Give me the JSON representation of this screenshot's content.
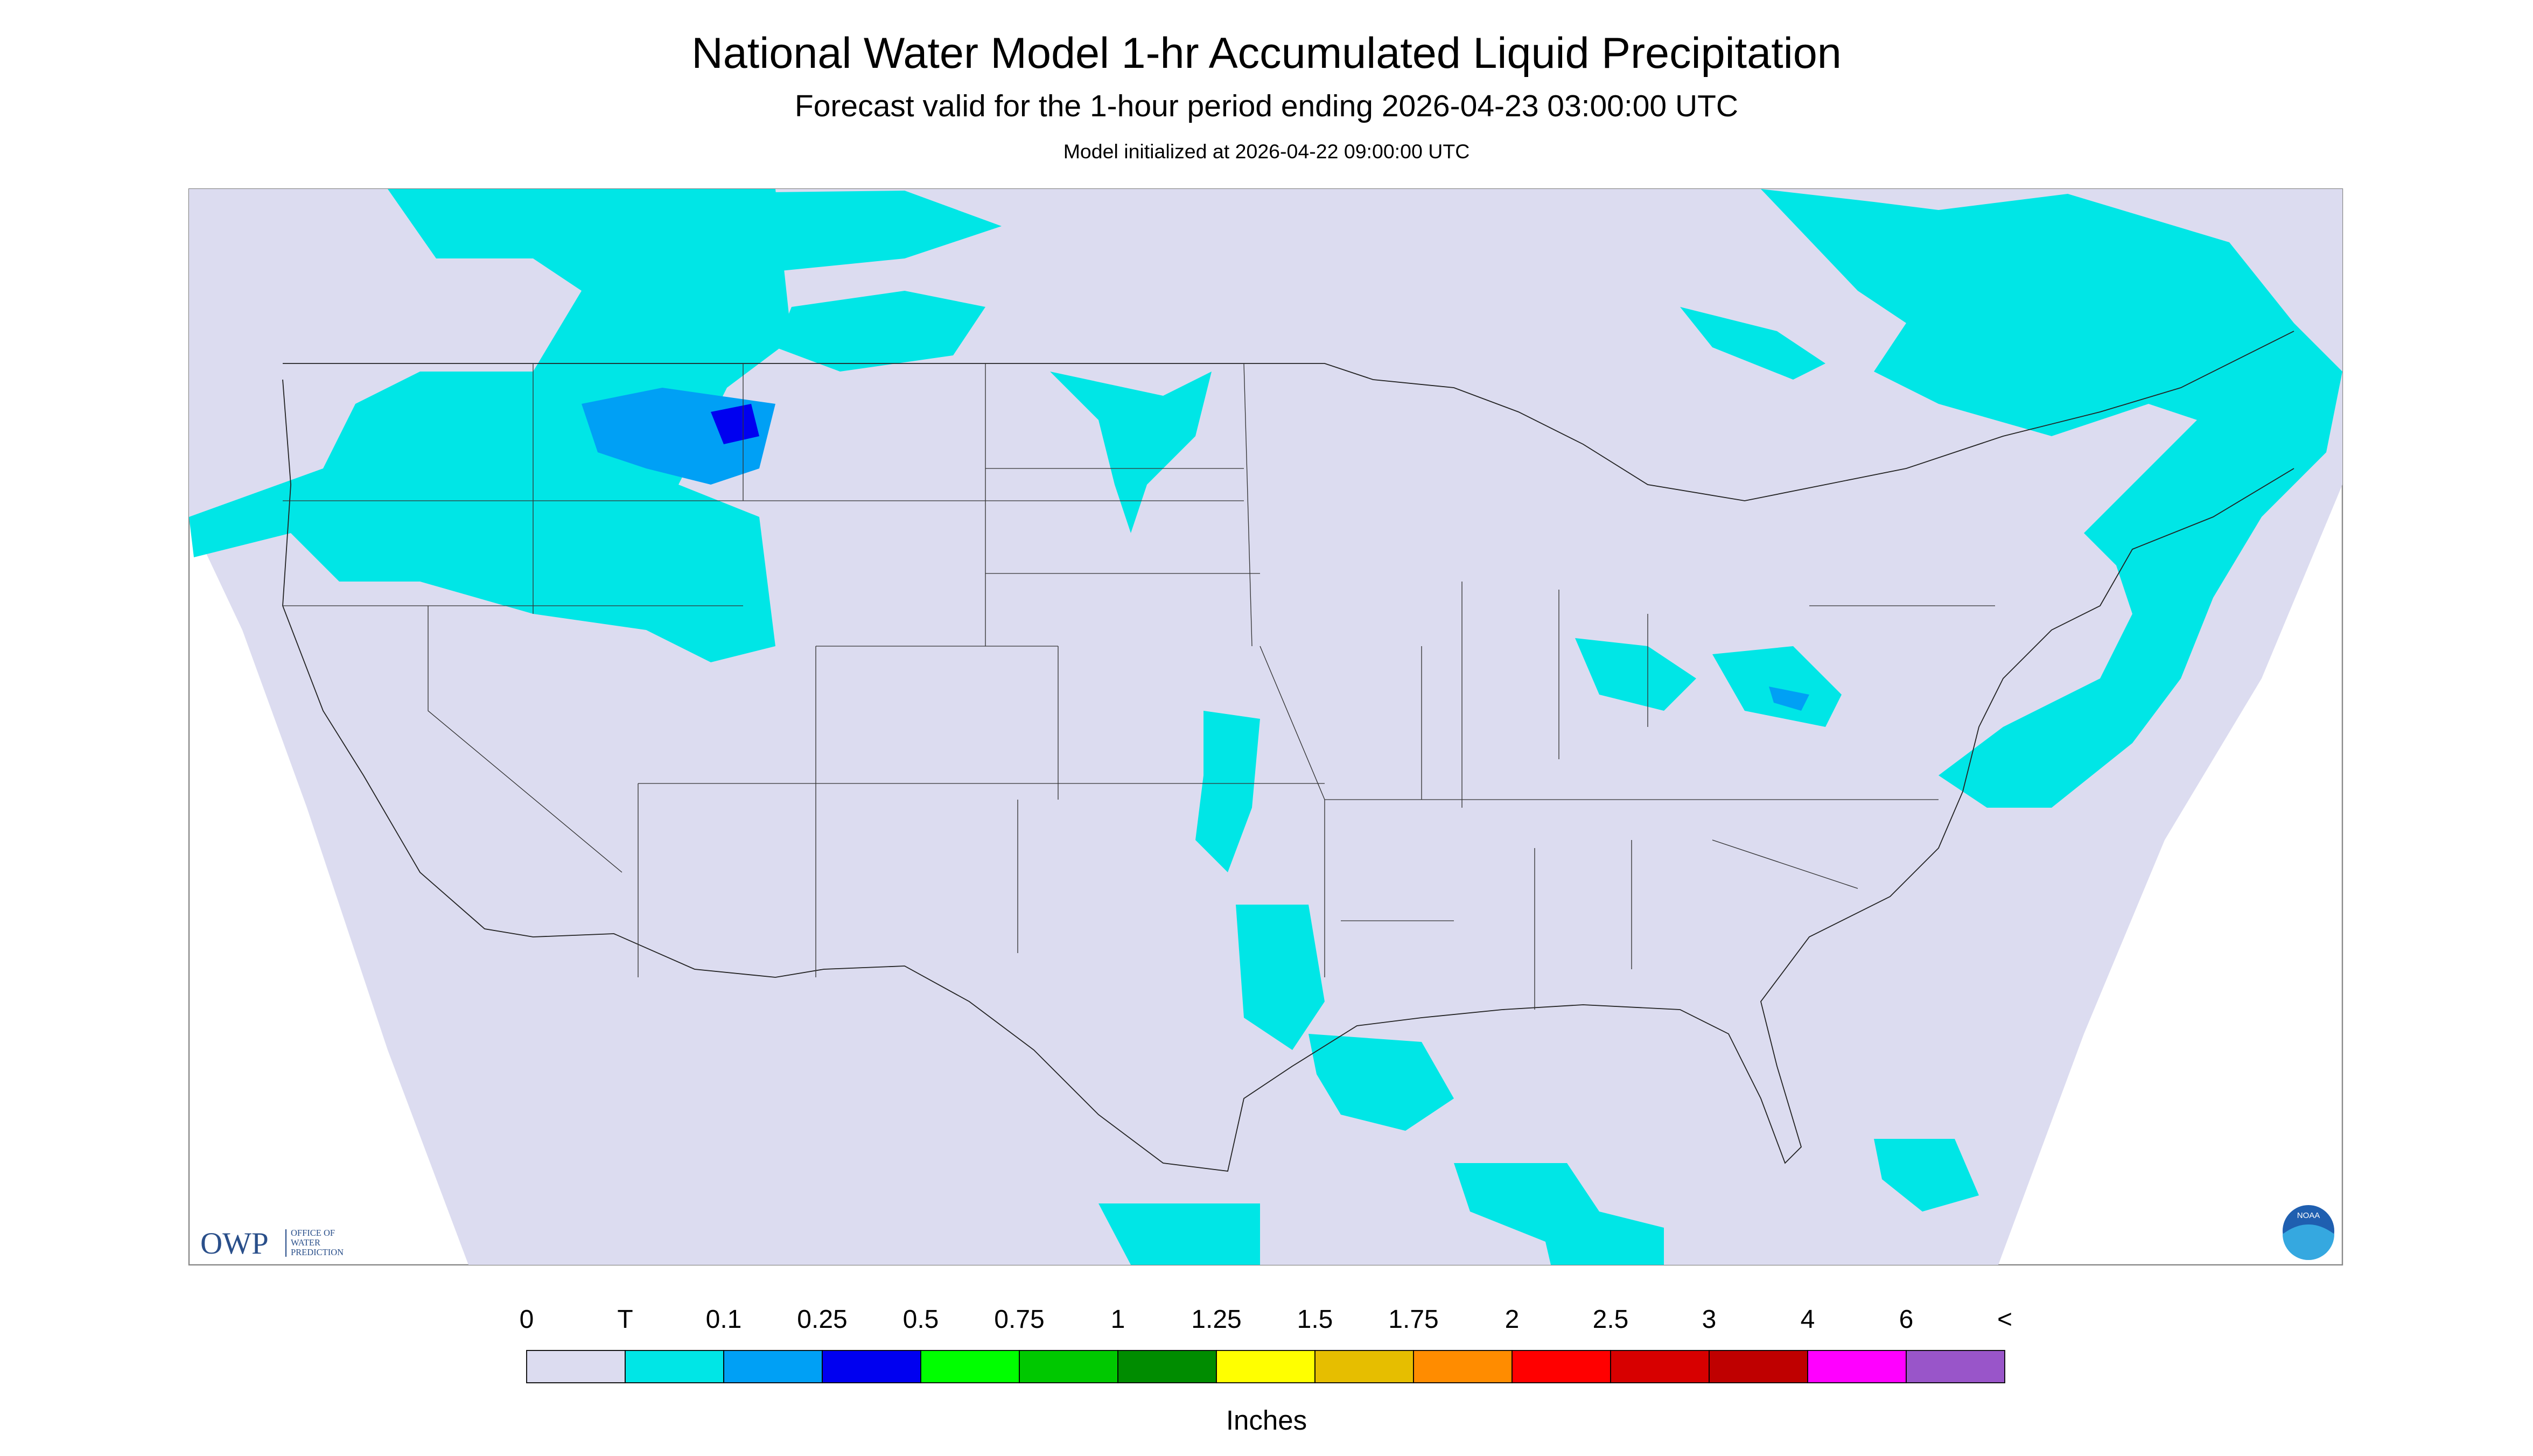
{
  "header": {
    "title": "National Water Model 1-hr Accumulated Liquid Precipitation",
    "subtitle": "Forecast valid for the 1-hour period ending 2026-04-23 03:00:00 UTC",
    "note": "Model initialized at 2026-04-22 09:00:00 UTC"
  },
  "legend": {
    "labels": [
      "0",
      "T",
      "0.1",
      "0.25",
      "0.5",
      "0.75",
      "1",
      "1.25",
      "1.5",
      "1.75",
      "2",
      "2.5",
      "3",
      "4",
      "6",
      "<"
    ],
    "colors": [
      "#dcdcf0",
      "#00e6e6",
      "#00a0f5",
      "#0000f0",
      "#00ff00",
      "#00c800",
      "#008c00",
      "#ffff00",
      "#e6be00",
      "#ff8c00",
      "#ff0000",
      "#d70000",
      "#bf0000",
      "#ff00ff",
      "#9955c9"
    ],
    "unit": "Inches"
  },
  "logos": {
    "owp": "OWP",
    "owp_lines": [
      "OFFICE OF",
      "WATER",
      "PREDICTION"
    ],
    "noaa": "NOAA"
  }
}
